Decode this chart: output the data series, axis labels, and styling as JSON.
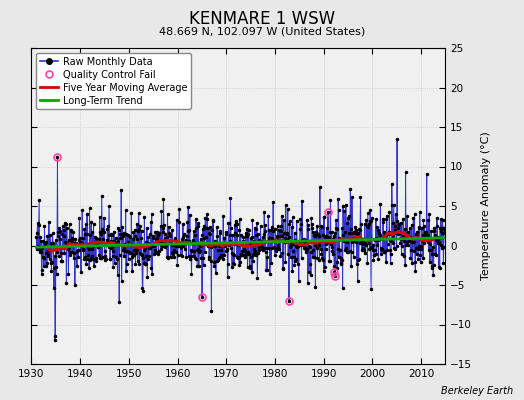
{
  "title": "KENMARE 1 WSW",
  "subtitle": "48.669 N, 102.097 W (United States)",
  "ylabel": "Temperature Anomaly (°C)",
  "credit": "Berkeley Earth",
  "xlim": [
    1930,
    2015
  ],
  "ylim": [
    -15,
    25
  ],
  "yticks": [
    -15,
    -10,
    -5,
    0,
    5,
    10,
    15,
    20,
    25
  ],
  "xticks": [
    1930,
    1940,
    1950,
    1960,
    1970,
    1980,
    1990,
    2000,
    2010
  ],
  "bg_color": "#e8e8e8",
  "plot_bg_color": "#f0f0f0",
  "raw_color": "#3333cc",
  "ma_color": "#dd0000",
  "trend_color": "#00aa00",
  "qc_color": "#ff44aa",
  "seed": 42,
  "start_year": 1931,
  "end_year": 2014
}
